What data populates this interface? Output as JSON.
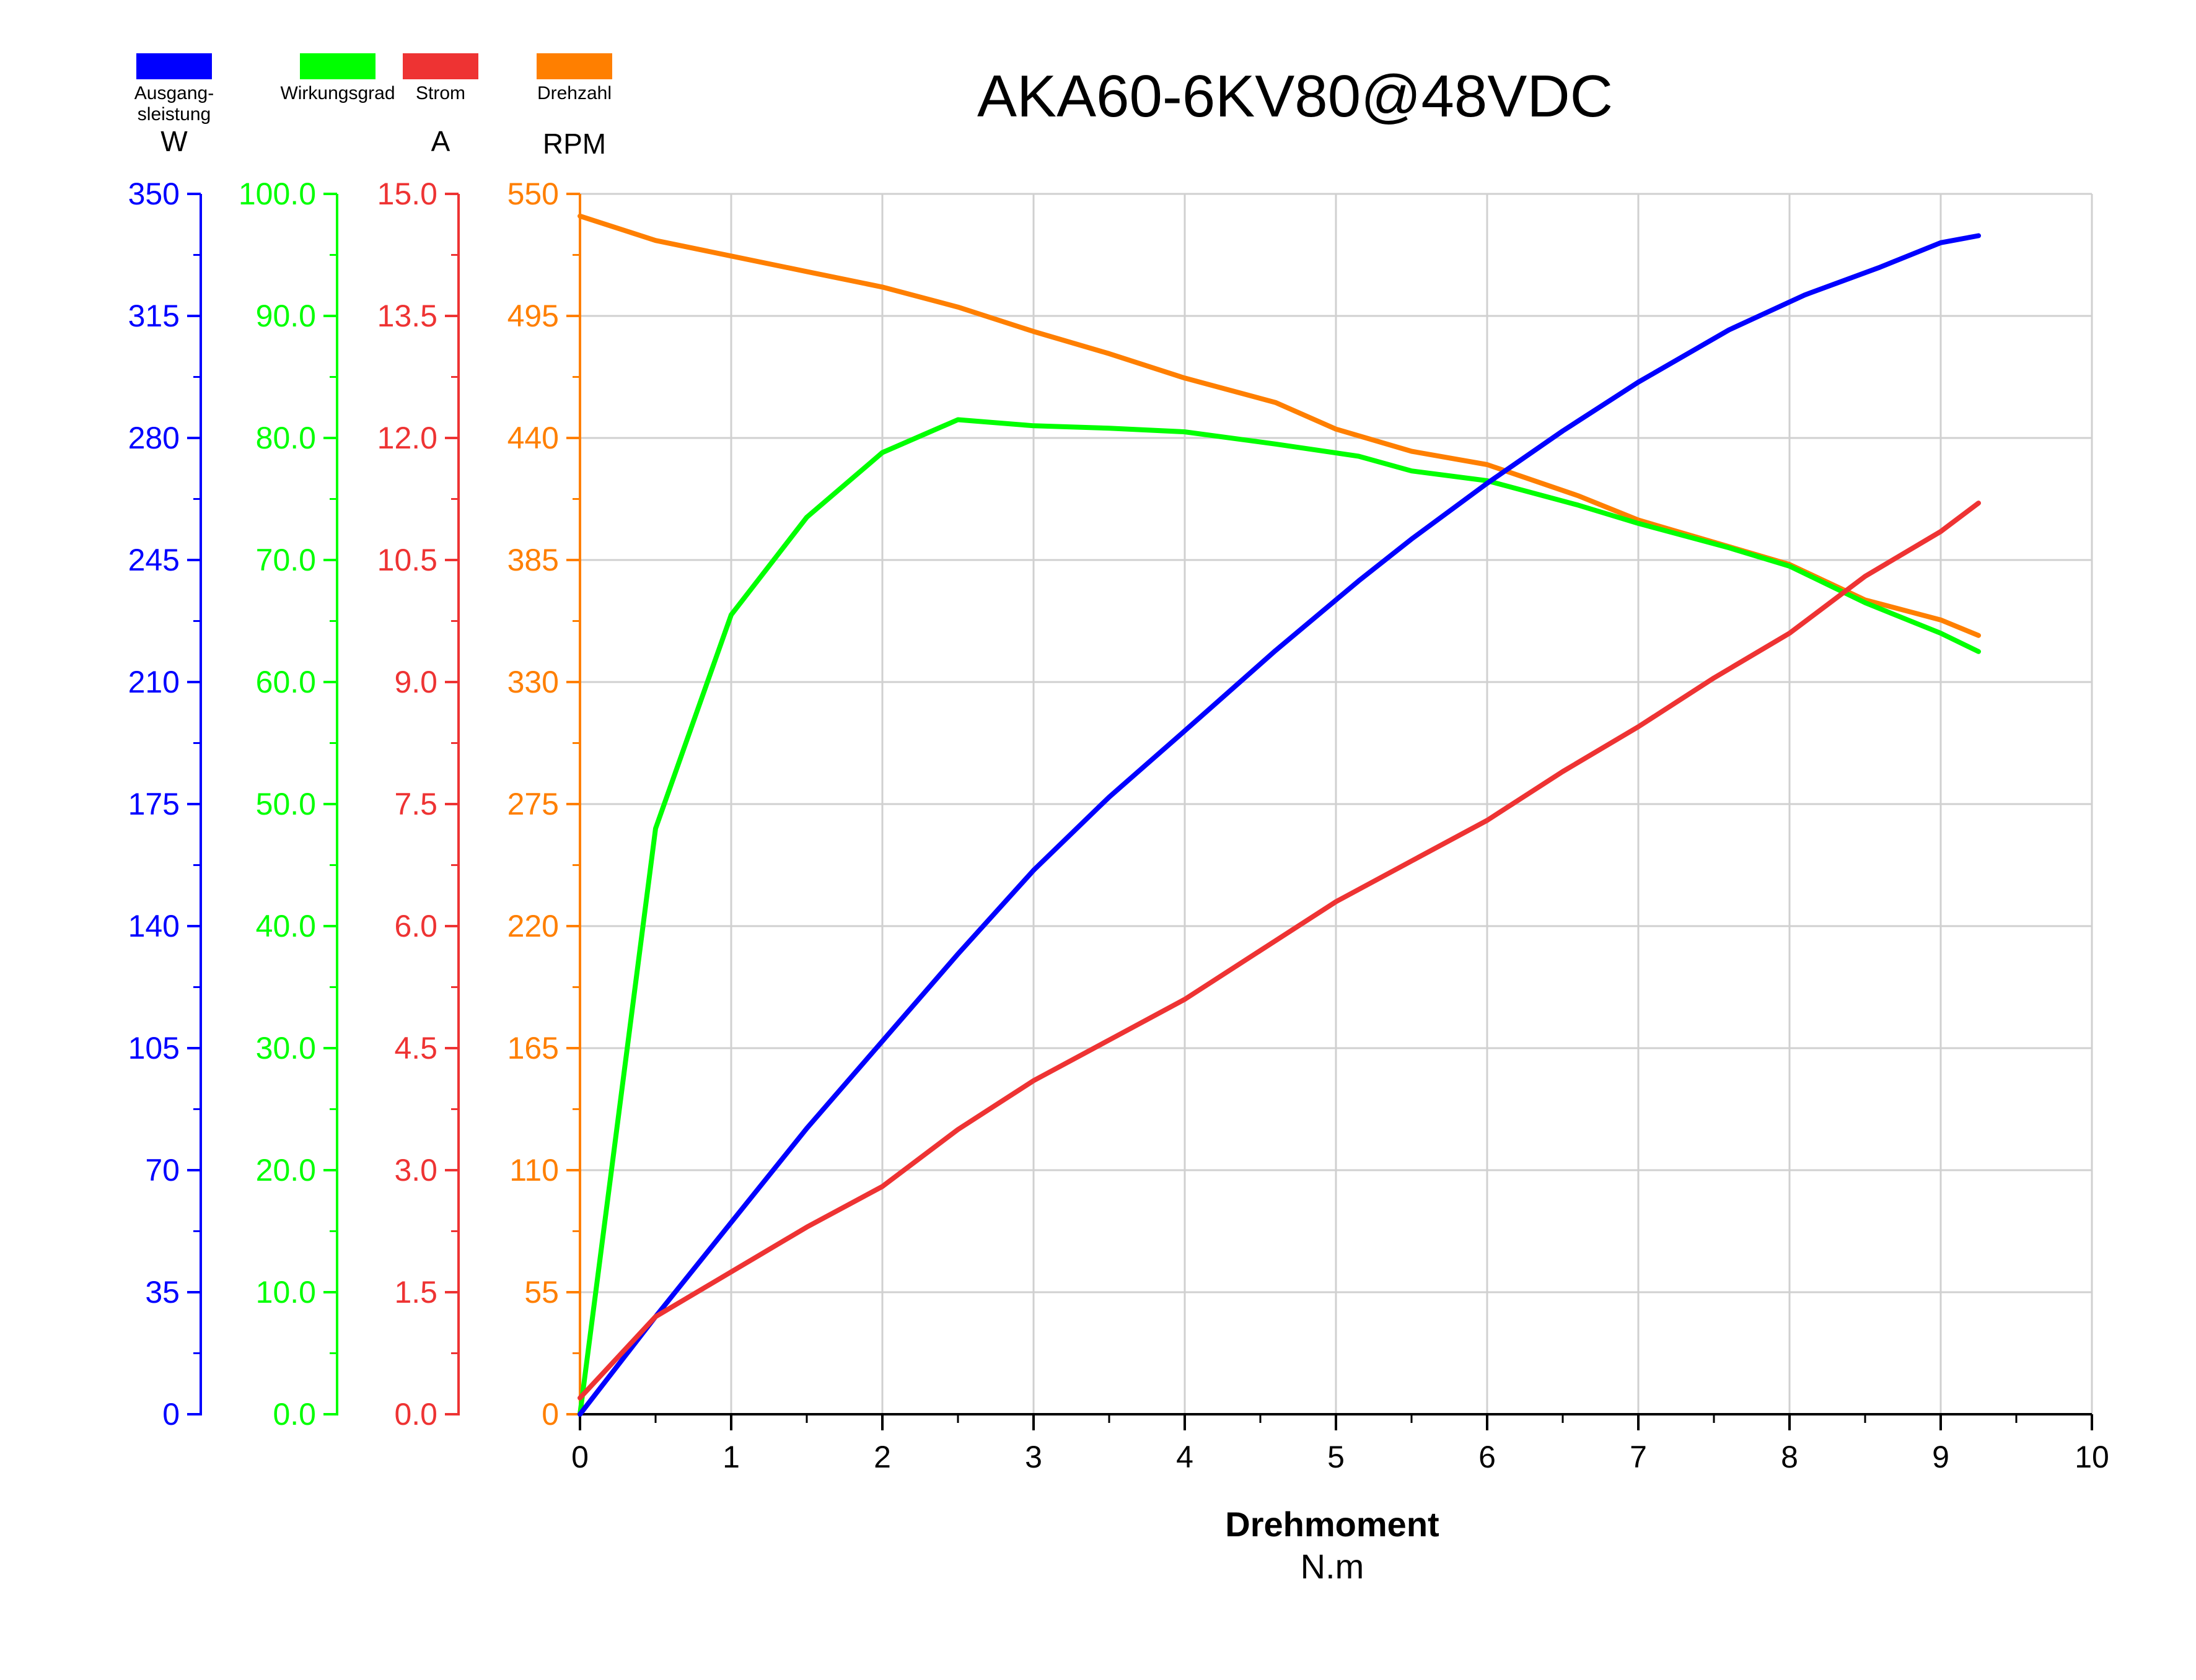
{
  "chart_data": {
    "type": "line",
    "title": "AKA60-6KV80@48VDC",
    "xlabel": "Drehmoment",
    "xunit": "N.m",
    "xlim": [
      0,
      10
    ],
    "xticks": [
      "0",
      "1",
      "2",
      "3",
      "4",
      "5",
      "6",
      "7",
      "8",
      "9",
      "10"
    ],
    "grid": true,
    "legend_position": "top-left",
    "axes": [
      {
        "id": "power",
        "legend_label": "Ausgang-\nsleistung",
        "unit": "W",
        "color": "#0000ff",
        "ylim": [
          0,
          350
        ],
        "ticks": [
          "0",
          "35",
          "70",
          "105",
          "140",
          "175",
          "210",
          "245",
          "280",
          "315",
          "350"
        ]
      },
      {
        "id": "efficiency",
        "legend_label": "Wirkungsgrad",
        "unit": "",
        "color": "#00ff00",
        "ylim": [
          0,
          100
        ],
        "ticks": [
          "0.0",
          "10.0",
          "20.0",
          "30.0",
          "40.0",
          "50.0",
          "60.0",
          "70.0",
          "80.0",
          "90.0",
          "100.0"
        ]
      },
      {
        "id": "current",
        "legend_label": "Strom",
        "unit": "A",
        "color": "#ee3333",
        "ylim": [
          0,
          15
        ],
        "ticks": [
          "0.0",
          "1.5",
          "3.0",
          "4.5",
          "6.0",
          "7.5",
          "9.0",
          "10.5",
          "12.0",
          "13.5",
          "15.0"
        ]
      },
      {
        "id": "speed",
        "legend_label": "Drehzahl",
        "unit": "RPM",
        "color": "#ff7f00",
        "ylim": [
          0,
          550
        ],
        "ticks": [
          "0",
          "55",
          "110",
          "165",
          "220",
          "275",
          "330",
          "385",
          "440",
          "495",
          "550"
        ]
      }
    ],
    "series": [
      {
        "axis": "speed",
        "color": "#ff7f00",
        "x": [
          0,
          0.5,
          1,
          1.5,
          2,
          2.5,
          3,
          3.5,
          4,
          4.6,
          5,
          5.5,
          6,
          6.6,
          7,
          7.6,
          8,
          8.5,
          9,
          9.25
        ],
        "y": [
          540,
          529,
          522,
          515,
          508,
          499,
          488,
          478,
          467,
          456,
          444,
          434,
          428,
          414,
          403,
          391,
          383,
          367,
          358,
          351
        ]
      },
      {
        "axis": "efficiency",
        "color": "#00ff00",
        "x": [
          0,
          0.5,
          1,
          1.5,
          2,
          2.5,
          3,
          3.5,
          4,
          4.6,
          5.15,
          5.5,
          6,
          6.6,
          7,
          7.6,
          8,
          8.5,
          9,
          9.25
        ],
        "y": [
          0,
          48,
          65.5,
          73.5,
          78.8,
          81.5,
          81,
          80.8,
          80.5,
          79.5,
          78.5,
          77.3,
          76.5,
          74.5,
          73,
          71,
          69.5,
          66.5,
          64,
          62.5
        ]
      },
      {
        "axis": "power",
        "color": "#0000ff",
        "x": [
          0,
          0.5,
          1,
          1.5,
          2,
          2.5,
          3,
          3.5,
          4,
          4.6,
          5.15,
          5.5,
          6,
          6.5,
          7,
          7.6,
          8.1,
          8.6,
          9,
          9.25
        ],
        "y": [
          0,
          28,
          55,
          82,
          107,
          132,
          156,
          177,
          196,
          219,
          239,
          251,
          267,
          282,
          296,
          311,
          321,
          329,
          336,
          338
        ]
      },
      {
        "axis": "current",
        "color": "#ee3333",
        "x": [
          0,
          0.5,
          1,
          1.5,
          2,
          2.5,
          3,
          3.5,
          4,
          4.5,
          5,
          5.5,
          6,
          6.5,
          7,
          7.5,
          8,
          8.5,
          9,
          9.25
        ],
        "y": [
          0.2,
          1.2,
          1.75,
          2.3,
          2.8,
          3.5,
          4.1,
          4.6,
          5.1,
          5.7,
          6.3,
          6.8,
          7.3,
          7.9,
          8.45,
          9.05,
          9.6,
          10.3,
          10.85,
          11.2
        ]
      }
    ]
  }
}
